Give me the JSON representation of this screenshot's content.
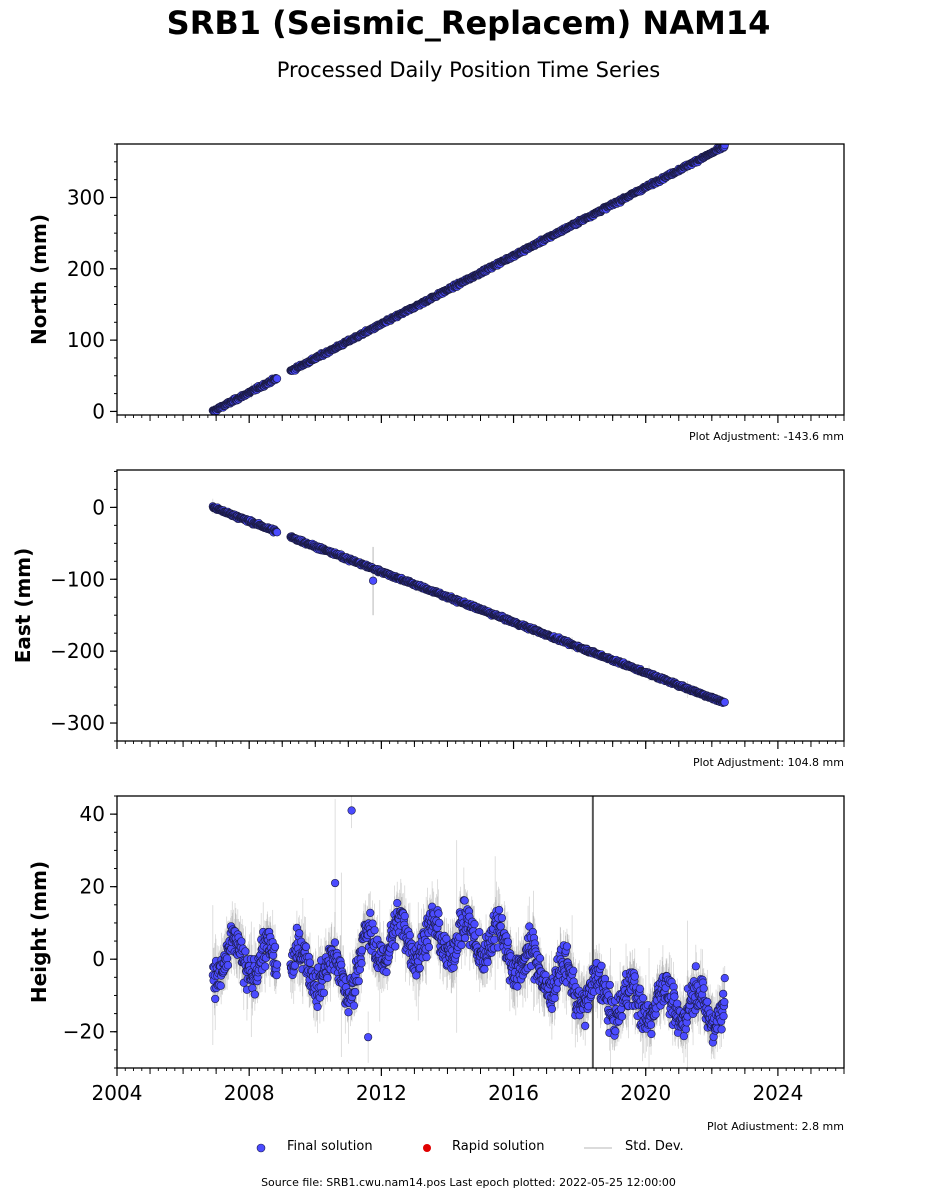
{
  "header": {
    "title": "SRB1 (Seismic_Replacem) NAM14",
    "subtitle": "Processed Daily Position Time Series"
  },
  "chart_data": [
    {
      "type": "scatter",
      "ylabel": "North (mm)",
      "xlim": [
        2004.0,
        2026.0
      ],
      "ylim": [
        -5,
        375
      ],
      "yticks": [
        0,
        100,
        200,
        300
      ],
      "adjustment": "Plot Adjustment: -143.6 mm",
      "trend": {
        "x": [
          2006.9,
          2022.4
        ],
        "y": [
          0,
          372
        ]
      },
      "gaps": [
        [
          2008.85,
          2009.25
        ]
      ],
      "noise_mm": 2,
      "outliers": []
    },
    {
      "type": "scatter",
      "ylabel": "East (mm)",
      "xlim": [
        2004.0,
        2026.0
      ],
      "ylim": [
        -325,
        52
      ],
      "yticks": [
        0,
        -100,
        -200,
        -300
      ],
      "adjustment": "Plot Adjustment: 104.8 mm",
      "trend": {
        "x": [
          2006.9,
          2022.4
        ],
        "y": [
          0,
          -272
        ]
      },
      "gaps": [
        [
          2008.85,
          2009.25
        ]
      ],
      "noise_mm": 2,
      "outliers": [
        {
          "x": 2011.75,
          "y": -102
        }
      ]
    },
    {
      "type": "scatter",
      "ylabel": "Height (mm)",
      "xlim": [
        2004.0,
        2026.0
      ],
      "ylim": [
        -30,
        45
      ],
      "yticks": [
        40,
        20,
        0,
        -20
      ],
      "xticks": [
        2004,
        2008,
        2012,
        2016,
        2020,
        2024
      ],
      "adjustment": "Plot Adjustment: 2.8 mm",
      "seasonal": {
        "x": [
          2006.9,
          2008.0,
          2009.0,
          2010.0,
          2011.0,
          2011.6,
          2012.5,
          2013.5,
          2014.5,
          2015.5,
          2016.5,
          2017.5,
          2018.5,
          2019.5,
          2020.5,
          2021.5,
          2022.4
        ],
        "mean": [
          0,
          0,
          -2,
          -2,
          -6,
          3,
          6,
          5,
          6,
          5,
          -2,
          -6,
          -10,
          -12,
          -12,
          -13,
          -13
        ]
      },
      "gaps": [
        [
          2008.85,
          2009.25
        ]
      ],
      "noise_mm": 5,
      "outliers": [
        {
          "x": 2011.1,
          "y": 41
        },
        {
          "x": 2011.6,
          "y": -21.5
        },
        {
          "x": 2010.6,
          "y": 21
        }
      ]
    }
  ],
  "legend": {
    "final": "Final solution",
    "rapid": "Rapid solution",
    "std": "Std. Dev.",
    "final_color": "#4b4bff",
    "rapid_color": "#e00000",
    "std_color": "#cfcfcf"
  },
  "footer": {
    "source": "Source file: SRB1.cwu.nam14.pos  Last epoch plotted: 2022-05-25 12:00:00"
  }
}
